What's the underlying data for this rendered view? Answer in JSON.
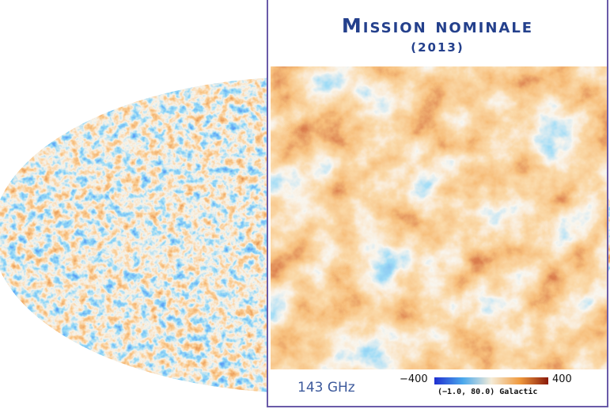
{
  "panel": {
    "title": "Mission nominale",
    "subtitle": "(2013)",
    "frequency_label": "143 GHz",
    "colorbar_min": "−400",
    "colorbar_max": "400",
    "coordinates_label": "(−1.0, 80.0) Galactic"
  },
  "colors": {
    "panel_border": "#6a5aa8",
    "title_text": "#24408c",
    "cold": "#1f3fe0",
    "cool": "#56b6ec",
    "neutral": "#f2ead6",
    "warm": "#f0a04a",
    "hot": "#b42a12"
  }
}
